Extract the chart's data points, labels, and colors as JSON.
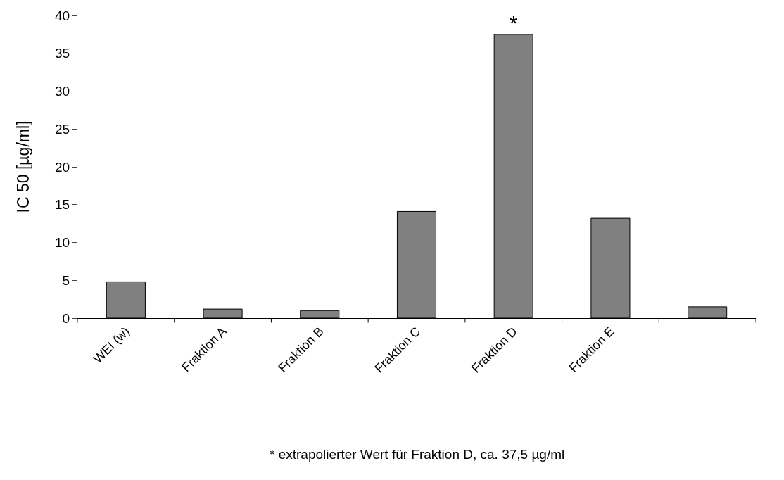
{
  "chart_data": {
    "type": "bar",
    "ylabel": "IC 50 [µg/ml]",
    "categories": [
      "WEI (w)",
      "Fraktion A",
      "Fraktion B",
      "Fraktion C",
      "Fraktion D",
      "Fraktion E",
      null
    ],
    "values": [
      4.8,
      1.2,
      1.0,
      14.1,
      37.5,
      13.2,
      1.5
    ],
    "color": "#808080",
    "ylim": [
      0,
      40
    ],
    "yticks": [
      0,
      5,
      10,
      15,
      20,
      25,
      30,
      35,
      40
    ],
    "legend": false,
    "annotations": [
      {
        "text": "*",
        "x": "Fraktion D",
        "y": 37.5
      },
      "* extrapolierter Wert für Fraktion D, ca. 37,5 µg/ml"
    ]
  }
}
